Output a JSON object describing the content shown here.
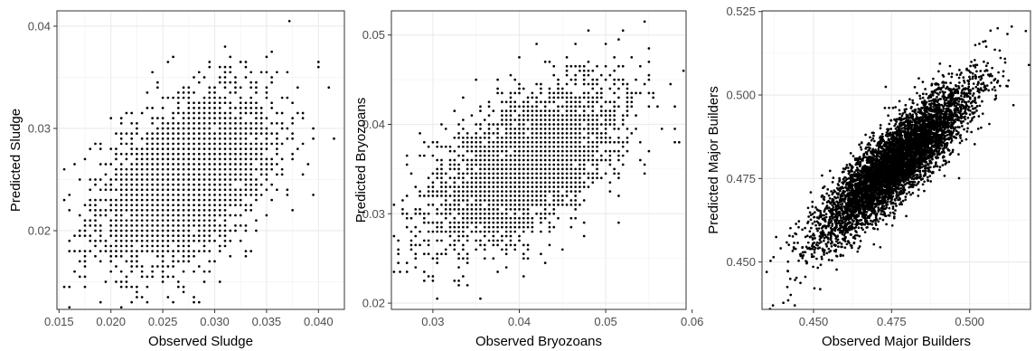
{
  "chart_data": [
    {
      "type": "scatter",
      "xlabel": "Observed Sludge",
      "ylabel": "Predicted Sludge",
      "xlim": [
        0.0148,
        0.0425
      ],
      "ylim": [
        0.0123,
        0.0415
      ],
      "xticks": [
        0.015,
        0.02,
        0.025,
        0.03,
        0.035,
        0.04
      ],
      "xtick_labels": [
        "0.015",
        "0.020",
        "0.025",
        "0.030",
        "0.035",
        "0.040"
      ],
      "yticks": [
        0.02,
        0.03,
        0.04
      ],
      "ytick_labels": [
        "0.02",
        "0.03",
        "0.04"
      ],
      "grid": true,
      "point_color": "#000000",
      "cloud": {
        "x_mean": 0.027,
        "y_mean": 0.025,
        "x_sd": 0.0042,
        "y_sd": 0.0042,
        "corr": 0.45,
        "n": 3000,
        "x_step": 0.0005,
        "y_step": 0.0005
      },
      "extreme_points": [
        {
          "x": 0.0372,
          "y": 0.0405
        },
        {
          "x": 0.0415,
          "y": 0.029
        },
        {
          "x": 0.016,
          "y": 0.0145
        },
        {
          "x": 0.022,
          "y": 0.013
        },
        {
          "x": 0.041,
          "y": 0.034
        },
        {
          "x": 0.026,
          "y": 0.037
        }
      ]
    },
    {
      "type": "scatter",
      "xlabel": "Observed Bryozoans",
      "ylabel": "Predicted Bryozoans",
      "xlim": [
        0.0252,
        0.0593
      ],
      "ylim": [
        0.0193,
        0.0527
      ],
      "xticks": [
        0.03,
        0.04,
        0.05,
        0.06
      ],
      "xtick_labels": [
        "0.03",
        "0.04",
        "0.05",
        "0.06"
      ],
      "yticks": [
        0.02,
        0.03,
        0.04,
        0.05
      ],
      "ytick_labels": [
        "0.02",
        "0.03",
        "0.04",
        "0.05"
      ],
      "grid": true,
      "point_color": "#000000",
      "cloud": {
        "x_mean": 0.0405,
        "y_mean": 0.0355,
        "x_sd": 0.0055,
        "y_sd": 0.0045,
        "corr": 0.55,
        "n": 3000,
        "x_step": 0.0005,
        "y_step": 0.0005
      },
      "extreme_points": [
        {
          "x": 0.0545,
          "y": 0.0515
        },
        {
          "x": 0.058,
          "y": 0.0395
        },
        {
          "x": 0.0262,
          "y": 0.0235
        },
        {
          "x": 0.0305,
          "y": 0.0205
        },
        {
          "x": 0.0575,
          "y": 0.0445
        },
        {
          "x": 0.027,
          "y": 0.0285
        }
      ]
    },
    {
      "type": "scatter",
      "xlabel": "Observed Major Builders",
      "ylabel": "Predicted Major Builders",
      "xlim": [
        0.4335,
        0.5195
      ],
      "ylim": [
        0.4358,
        0.5252
      ],
      "xticks": [
        0.45,
        0.475,
        0.5
      ],
      "xtick_labels": [
        "0.450",
        "0.475",
        "0.500"
      ],
      "yticks": [
        0.45,
        0.475,
        0.5,
        0.525
      ],
      "ytick_labels": [
        "0.450",
        "0.475",
        "0.500",
        "0.525"
      ],
      "grid": true,
      "point_color": "#000000",
      "cloud": {
        "x_mean": 0.476,
        "y_mean": 0.4795,
        "x_sd": 0.0118,
        "y_sd": 0.0112,
        "corr": 0.86,
        "n": 6000,
        "x_step": 0,
        "y_step": 0
      },
      "extreme_points": [
        {
          "x": 0.5135,
          "y": 0.5205
        },
        {
          "x": 0.519,
          "y": 0.509
        },
        {
          "x": 0.437,
          "y": 0.437
        },
        {
          "x": 0.444,
          "y": 0.437
        },
        {
          "x": 0.435,
          "y": 0.447
        },
        {
          "x": 0.509,
          "y": 0.52
        }
      ]
    }
  ]
}
